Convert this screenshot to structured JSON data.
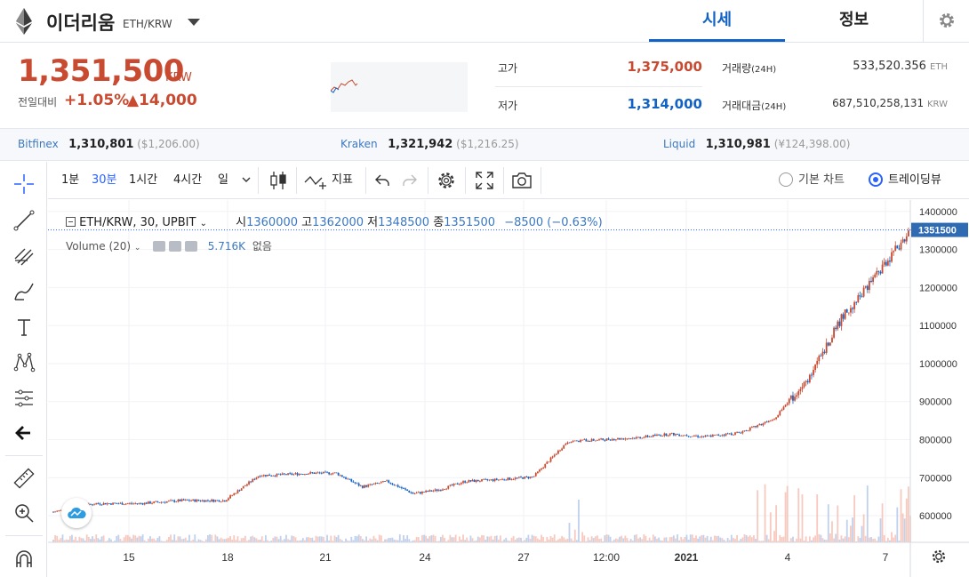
{
  "header": {
    "coin_name": "이더리움",
    "pair": "ETH/KRW",
    "tab_price": "시세",
    "tab_info": "정보"
  },
  "summary": {
    "price": "1,351,500",
    "unit": "KRW",
    "change_label": "전일대비",
    "change_pct": "+1.05%",
    "change_amt": "▲14,000",
    "high_label": "고가",
    "high_value": "1,375,000",
    "low_label": "저가",
    "low_value": "1,314,000",
    "volume_label": "거래량",
    "volume_period": "(24H)",
    "volume_value": "533,520.356",
    "volume_unit": "ETH",
    "amount_label": "거래대금",
    "amount_period": "(24H)",
    "amount_value": "687,510,258,131",
    "amount_unit": "KRW"
  },
  "exchanges": [
    {
      "name": "Bitfinex",
      "price": "1,310,801",
      "sub": "($1,206.00)"
    },
    {
      "name": "Kraken",
      "price": "1,321,942",
      "sub": "($1,216.25)"
    },
    {
      "name": "Liquid",
      "price": "1,310,981",
      "sub": "(¥124,398.00)"
    }
  ],
  "toolbar": {
    "intervals": [
      "1분",
      "30분",
      "1시간",
      "4시간",
      "일"
    ],
    "active_interval": "30분",
    "indicators_label": "지표",
    "basic_chart_label": "기본 차트",
    "trading_view_label": "트레이딩뷰",
    "accent": "#2962ff"
  },
  "legend": {
    "symbol": "ETH/KRW, 30, UPBIT",
    "open_label": "시",
    "open": "1360000",
    "high_label": "고",
    "high": "1362000",
    "low_label": "저",
    "low": "1348500",
    "close_label": "종",
    "close": "1351500",
    "change": "−8500 (−0.63%)",
    "volume_label": "Volume (20)",
    "volume_value": "5.716K",
    "volume_extra": "없음"
  },
  "chart_data": {
    "type": "line",
    "x_ticks": [
      "15",
      "18",
      "21",
      "24",
      "27",
      "12:00",
      "2021",
      "4",
      "7"
    ],
    "y_ticks": [
      600000,
      700000,
      800000,
      900000,
      1000000,
      1100000,
      1200000,
      1300000,
      1400000
    ],
    "ylim": [
      530000,
      1430000
    ],
    "last_price_label": "1351500",
    "series": [
      {
        "x": [
          0,
          5,
          10,
          15,
          20,
          24,
          27,
          30,
          33,
          36,
          39,
          42,
          45,
          48,
          52,
          56,
          60,
          64,
          68,
          72,
          76,
          80,
          84,
          88,
          92,
          96,
          100
        ],
        "values": [
          610000,
          632000,
          632000,
          640000,
          640000,
          706000,
          708000,
          712000,
          712000,
          676000,
          690000,
          658000,
          668000,
          690000,
          695000,
          702000,
          795000,
          800000,
          805000,
          815000,
          808000,
          818000,
          852000,
          960000,
          1120000,
          1230000,
          1351500
        ]
      }
    ],
    "colors": {
      "up": "#c84a31",
      "down": "#1261c4",
      "line": "#5a7fb8"
    }
  }
}
